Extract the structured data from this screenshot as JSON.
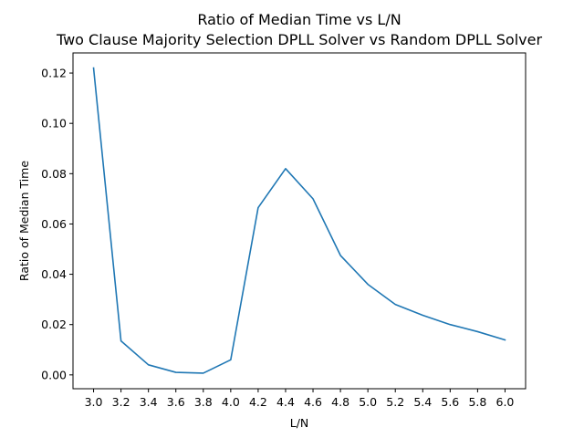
{
  "chart_data": {
    "type": "line",
    "title": "Ratio of Median Time vs L/N",
    "subtitle": "Two Clause Majority Selection DPLL Solver vs Random DPLL Solver",
    "xlabel": "L/N",
    "ylabel": "Ratio of Median Time",
    "xlim": [
      2.85,
      6.15
    ],
    "ylim": [
      -0.0055,
      0.128
    ],
    "x_ticks": [
      3.0,
      3.2,
      3.4,
      3.6,
      3.8,
      4.0,
      4.2,
      4.4,
      4.6,
      4.8,
      5.0,
      5.2,
      5.4,
      5.6,
      5.8,
      6.0
    ],
    "x_tick_labels": [
      "3.0",
      "3.2",
      "3.4",
      "3.6",
      "3.8",
      "4.0",
      "4.2",
      "4.4",
      "4.6",
      "4.8",
      "5.0",
      "5.2",
      "5.4",
      "5.6",
      "5.8",
      "6.0"
    ],
    "y_ticks": [
      0.0,
      0.02,
      0.04,
      0.06,
      0.08,
      0.1,
      0.12
    ],
    "y_tick_labels": [
      "0.00",
      "0.02",
      "0.04",
      "0.06",
      "0.08",
      "0.10",
      "0.12"
    ],
    "grid": false,
    "legend": "none",
    "series": [
      {
        "color": "#1f77b4",
        "x": [
          3.0,
          3.2,
          3.4,
          3.6,
          3.8,
          4.0,
          4.2,
          4.4,
          4.6,
          4.8,
          5.0,
          5.2,
          5.4,
          5.6,
          5.8,
          6.0
        ],
        "y": [
          0.122,
          0.0135,
          0.004,
          0.001,
          0.0007,
          0.006,
          0.0665,
          0.082,
          0.07,
          0.0475,
          0.036,
          0.028,
          0.0237,
          0.02,
          0.0172,
          0.0139
        ]
      }
    ]
  }
}
